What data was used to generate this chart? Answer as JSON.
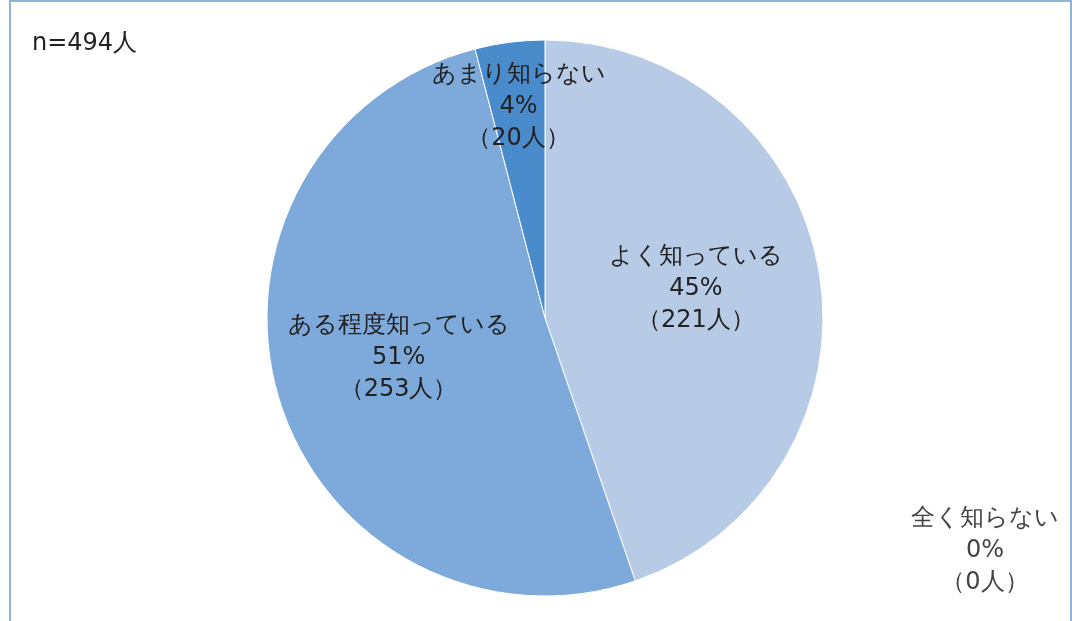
{
  "chart_data": {
    "type": "pie",
    "categories": [
      "よく知っている",
      "ある程度知っている",
      "あまり知らない",
      "全く知らない"
    ],
    "values": [
      221,
      253,
      20,
      0
    ],
    "value_labels": [
      "45%\n（221人）",
      "51%\n（253人）",
      "4%\n（20人）",
      "0%\n（0人）"
    ],
    "colors": [
      "#b7cbe6",
      "#7ea9db",
      "#4a8bcb",
      null
    ],
    "annotations": [
      "n=494人"
    ],
    "legend": false
  }
}
